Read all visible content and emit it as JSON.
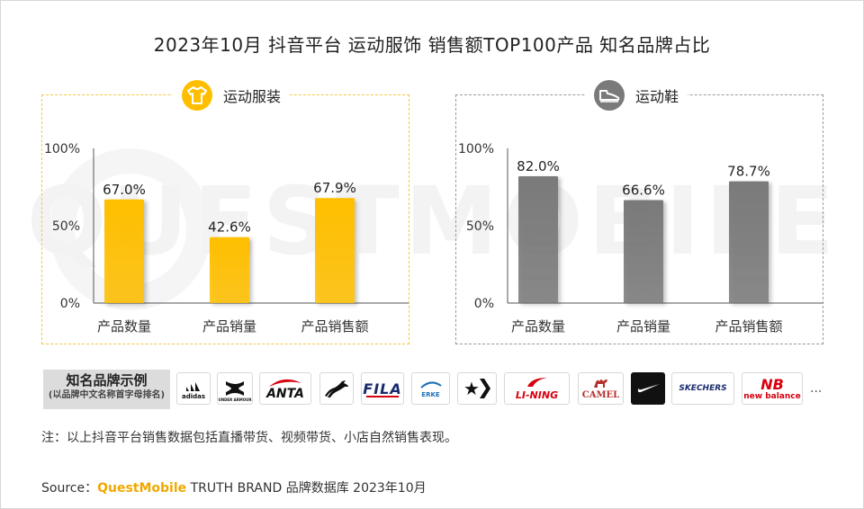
{
  "title": "2023年10月 抖音平台 运动服饰 销售额TOP100产品 知名品牌占比",
  "chart_data": [
    {
      "type": "bar",
      "title": "运动服装",
      "categories": [
        "产品数量",
        "产品销量",
        "产品销售额"
      ],
      "values": [
        67.0,
        42.6,
        67.9
      ],
      "value_labels": [
        "67.0%",
        "42.6%",
        "67.9%"
      ],
      "ylim": [
        0,
        100
      ],
      "yticks": [
        "0%",
        "50%",
        "100%"
      ],
      "color": "#ffbf00",
      "icon": "shirt-icon"
    },
    {
      "type": "bar",
      "title": "运动鞋",
      "categories": [
        "产品数量",
        "产品销量",
        "产品销售额"
      ],
      "values": [
        82.0,
        66.6,
        78.7
      ],
      "value_labels": [
        "82.0%",
        "66.6%",
        "78.7%"
      ],
      "ylim": [
        0,
        100
      ],
      "yticks": [
        "0%",
        "50%",
        "100%"
      ],
      "color": "#7a7a7a",
      "icon": "sneaker-icon"
    }
  ],
  "brands": {
    "label": "知名品牌示例",
    "sublabel": "(以品牌中文名称首字母排名)",
    "logos": [
      {
        "name": "adidas",
        "text": "adidas"
      },
      {
        "name": "under-armour",
        "text": "UNDER ARMOUR"
      },
      {
        "name": "anta",
        "text": "ANTA"
      },
      {
        "name": "puma",
        "text": "PUMA"
      },
      {
        "name": "fila",
        "text": "FILA"
      },
      {
        "name": "erke",
        "text": "ERKE"
      },
      {
        "name": "converse",
        "text": "★"
      },
      {
        "name": "li-ning",
        "text": "LI-NING"
      },
      {
        "name": "camel",
        "text": "CAMEL"
      },
      {
        "name": "nike",
        "text": "✓"
      },
      {
        "name": "skechers",
        "text": "SKECHERS"
      },
      {
        "name": "new-balance",
        "text": "new balance"
      }
    ],
    "ellipsis": "..."
  },
  "note": "注：以上抖音平台销售数据包括直播带货、视频带货、小店自然销售表现。",
  "source": {
    "prefix": "Source：",
    "brand": "QuestMobile",
    "rest": " TRUTH BRAND 品牌数据库 2023年10月"
  },
  "watermark": "QUESTMOBILE"
}
